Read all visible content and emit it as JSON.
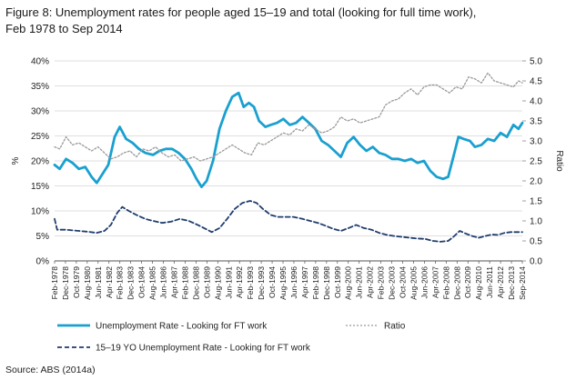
{
  "title_line1": "Figure 8: Unemployment rates for people aged 15–19 and total (looking for full time work),",
  "title_line2": "Feb 1978 to Sep 2014",
  "source": "Source: ABS (2014a)",
  "chart_data": {
    "type": "line",
    "x_tick_labels": [
      "Feb-1978",
      "Dec-1978",
      "Oct-1979",
      "Aug-1980",
      "Jun-1981",
      "Apr-1982",
      "Feb-1983",
      "Dec-1983",
      "Oct-1984",
      "Aug-1985",
      "Jun-1986",
      "Apr-1987",
      "Feb-1988",
      "Dec-1988",
      "Oct-1989",
      "Aug-1990",
      "Jun-1991",
      "Apr-1992",
      "Feb-1993",
      "Dec-1993",
      "Oct-1994",
      "Aug-1995",
      "Jun-1996",
      "Apr-1997",
      "Feb-1998",
      "Dec-1998",
      "Oct-1999",
      "Aug-2000",
      "Jun-2001",
      "Apr-2002",
      "Feb-2003",
      "Dec-2003",
      "Oct-2004",
      "Aug-2005",
      "Jun-2006",
      "Apr-2007",
      "Feb-2008",
      "Dec-2008",
      "Oct-2009",
      "Aug-2010",
      "Jun-2011",
      "Apr-2012",
      "Dec-2013",
      "Sep-2014"
    ],
    "y_left_label": "%",
    "y_left_ticks": [
      "0%",
      "5%",
      "10%",
      "15%",
      "20%",
      "25%",
      "30%",
      "35%",
      "40%"
    ],
    "y_left_range": [
      0,
      40
    ],
    "y_right_label": "Ratio",
    "y_right_ticks": [
      "0.0",
      "0.5",
      "1.0",
      "1.5",
      "2.0",
      "2.5",
      "3.0",
      "3.5",
      "4.0",
      "4.5",
      "5.0"
    ],
    "y_right_range": [
      0,
      5
    ],
    "grid": "horizontal",
    "legend_position": "bottom",
    "series": [
      {
        "name": "Unemployment Rate - Looking for FT work",
        "axis": "right",
        "style": "solid",
        "color": "#1aa0d0",
        "x": [
          1978.1,
          1978.5,
          1979.0,
          1979.5,
          1980.0,
          1980.5,
          1981.0,
          1981.4,
          1981.8,
          1982.3,
          1982.8,
          1983.2,
          1983.7,
          1984.2,
          1984.7,
          1985.2,
          1985.8,
          1986.3,
          1986.8,
          1987.3,
          1987.8,
          1988.3,
          1988.8,
          1989.2,
          1989.6,
          1990.0,
          1990.5,
          1991.0,
          1991.5,
          1992.0,
          1992.5,
          1992.9,
          1993.3,
          1993.7,
          1994.1,
          1994.6,
          1995.0,
          1995.5,
          1996.0,
          1996.5,
          1997.0,
          1997.5,
          1998.0,
          1998.5,
          1999.0,
          1999.5,
          2000.0,
          2000.5,
          2001.0,
          2001.5,
          2002.0,
          2002.5,
          2003.0,
          2003.5,
          2004.0,
          2004.5,
          2005.0,
          2005.5,
          2006.0,
          2006.5,
          2007.0,
          2007.5,
          2008.0,
          2008.5,
          2008.9,
          2009.3,
          2009.7,
          2010.1,
          2010.6,
          2011.0,
          2011.5,
          2012.0,
          2012.5,
          2013.0,
          2013.5,
          2014.0,
          2014.4,
          2014.7
        ],
        "y": [
          2.4,
          2.3,
          2.55,
          2.45,
          2.3,
          2.35,
          2.1,
          1.95,
          2.15,
          2.4,
          3.1,
          3.35,
          3.05,
          2.95,
          2.8,
          2.7,
          2.65,
          2.75,
          2.8,
          2.8,
          2.7,
          2.55,
          2.3,
          2.05,
          1.85,
          2.0,
          2.5,
          3.3,
          3.75,
          4.1,
          4.2,
          3.85,
          3.95,
          3.85,
          3.5,
          3.35,
          3.4,
          3.45,
          3.55,
          3.4,
          3.45,
          3.6,
          3.45,
          3.3,
          3.0,
          2.9,
          2.75,
          2.6,
          2.95,
          3.1,
          2.9,
          2.75,
          2.85,
          2.7,
          2.65,
          2.55,
          2.55,
          2.5,
          2.55,
          2.45,
          2.5,
          2.25,
          2.1,
          2.05,
          2.1,
          2.6,
          3.1,
          3.05,
          3.0,
          2.85,
          2.9,
          3.05,
          3.0,
          3.2,
          3.1,
          3.4,
          3.3,
          3.45
        ]
      },
      {
        "name": "Ratio",
        "axis": "right",
        "style": "dotted",
        "color": "#9a9a9a",
        "x": [
          1978.1,
          1978.5,
          1979.0,
          1979.5,
          1980.0,
          1980.5,
          1981.0,
          1981.5,
          1982.0,
          1982.5,
          1983.0,
          1983.5,
          1984.0,
          1984.5,
          1985.0,
          1985.5,
          1986.0,
          1986.5,
          1987.0,
          1987.5,
          1988.0,
          1988.5,
          1989.0,
          1989.5,
          1990.0,
          1990.5,
          1991.0,
          1991.5,
          1992.0,
          1992.5,
          1993.0,
          1993.5,
          1994.0,
          1994.5,
          1995.0,
          1995.5,
          1996.0,
          1996.5,
          1997.0,
          1997.5,
          1998.0,
          1998.5,
          1999.0,
          1999.5,
          2000.0,
          2000.5,
          2001.0,
          2001.5,
          2002.0,
          2002.5,
          2003.0,
          2003.5,
          2004.0,
          2004.5,
          2005.0,
          2005.5,
          2006.0,
          2006.5,
          2007.0,
          2007.5,
          2008.0,
          2008.5,
          2009.0,
          2009.5,
          2010.0,
          2010.5,
          2011.0,
          2011.5,
          2012.0,
          2012.5,
          2013.0,
          2013.5,
          2014.0,
          2014.4,
          2014.7
        ],
        "y": [
          2.85,
          2.8,
          3.1,
          2.9,
          2.95,
          2.85,
          2.75,
          2.85,
          2.7,
          2.55,
          2.6,
          2.7,
          2.75,
          2.6,
          2.8,
          2.75,
          2.85,
          2.7,
          2.6,
          2.65,
          2.5,
          2.55,
          2.6,
          2.5,
          2.55,
          2.6,
          2.7,
          2.8,
          2.9,
          2.8,
          2.7,
          2.65,
          2.95,
          2.9,
          3.0,
          3.1,
          3.2,
          3.15,
          3.3,
          3.25,
          3.4,
          3.3,
          3.2,
          3.25,
          3.35,
          3.6,
          3.5,
          3.55,
          3.45,
          3.5,
          3.55,
          3.6,
          3.9,
          4.0,
          4.05,
          4.2,
          4.3,
          4.15,
          4.35,
          4.4,
          4.4,
          4.3,
          4.2,
          4.35,
          4.3,
          4.6,
          4.55,
          4.45,
          4.7,
          4.5,
          4.45,
          4.4,
          4.35,
          4.5,
          4.45
        ]
      },
      {
        "name": "15–19 YO Unemployment Rate - Looking for FT work",
        "axis": "right",
        "style": "dashed",
        "color": "#1f3d6e",
        "x": [
          1978.1,
          1978.3,
          1979.0,
          1980.0,
          1980.7,
          1981.4,
          1982.0,
          1982.5,
          1983.0,
          1983.4,
          1983.9,
          1984.5,
          1985.2,
          1985.8,
          1986.5,
          1987.2,
          1987.9,
          1988.6,
          1989.3,
          1989.8,
          1990.4,
          1991.0,
          1991.6,
          1992.2,
          1992.8,
          1993.4,
          1993.9,
          1994.4,
          1995.0,
          1995.6,
          1996.2,
          1996.8,
          1997.5,
          1998.1,
          1998.7,
          1999.3,
          1999.9,
          2000.5,
          2001.1,
          2001.7,
          2002.3,
          2002.9,
          2003.5,
          2004.1,
          2004.7,
          2005.3,
          2005.9,
          2006.5,
          2007.1,
          2007.7,
          2008.3,
          2008.9,
          2009.3,
          2009.8,
          2010.3,
          2010.8,
          2011.3,
          2011.8,
          2012.3,
          2012.8,
          2013.3,
          2013.8,
          2014.3,
          2014.7
        ],
        "y": [
          1.05,
          0.78,
          0.78,
          0.75,
          0.73,
          0.7,
          0.75,
          0.9,
          1.2,
          1.35,
          1.25,
          1.15,
          1.05,
          1.0,
          0.95,
          0.98,
          1.05,
          1.0,
          0.9,
          0.82,
          0.72,
          0.82,
          1.05,
          1.3,
          1.45,
          1.5,
          1.45,
          1.3,
          1.15,
          1.1,
          1.1,
          1.1,
          1.05,
          1.0,
          0.95,
          0.88,
          0.8,
          0.75,
          0.82,
          0.9,
          0.82,
          0.78,
          0.7,
          0.65,
          0.62,
          0.6,
          0.58,
          0.56,
          0.55,
          0.5,
          0.48,
          0.5,
          0.6,
          0.75,
          0.68,
          0.62,
          0.58,
          0.62,
          0.66,
          0.65,
          0.7,
          0.72,
          0.72,
          0.72
        ]
      }
    ]
  }
}
